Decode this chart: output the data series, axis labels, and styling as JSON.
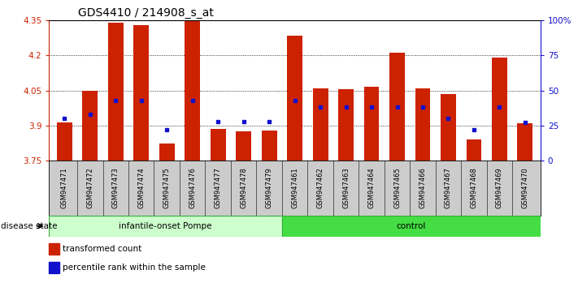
{
  "title": "GDS4410 / 214908_s_at",
  "samples": [
    "GSM947471",
    "GSM947472",
    "GSM947473",
    "GSM947474",
    "GSM947475",
    "GSM947476",
    "GSM947477",
    "GSM947478",
    "GSM947479",
    "GSM947461",
    "GSM947462",
    "GSM947463",
    "GSM947464",
    "GSM947465",
    "GSM947466",
    "GSM947467",
    "GSM947468",
    "GSM947469",
    "GSM947470"
  ],
  "group0_count": 9,
  "group1_count": 10,
  "group0_label": "infantile-onset Pompe",
  "group1_label": "control",
  "group0_color": "#ccffcc",
  "group1_color": "#44dd44",
  "transformed_count": [
    3.915,
    4.05,
    4.34,
    4.33,
    3.825,
    4.355,
    3.885,
    3.875,
    3.88,
    4.285,
    4.06,
    4.055,
    4.065,
    4.21,
    4.06,
    4.035,
    3.84,
    4.19,
    3.91
  ],
  "percentile_rank": [
    30,
    33,
    43,
    43,
    22,
    43,
    28,
    28,
    28,
    43,
    38,
    38,
    38,
    38,
    38,
    30,
    22,
    38,
    27
  ],
  "ylim_left": [
    3.75,
    4.35
  ],
  "ylim_right": [
    0,
    100
  ],
  "bar_color": "#cc2200",
  "dot_color": "#1111cc",
  "yticks_left": [
    3.75,
    3.9,
    4.05,
    4.2,
    4.35
  ],
  "yticks_right": [
    0,
    25,
    50,
    75,
    100
  ],
  "yticklabels_right": [
    "0",
    "25",
    "50",
    "75",
    "100%"
  ],
  "legend_items": [
    {
      "label": "transformed count",
      "color": "#cc2200"
    },
    {
      "label": "percentile rank within the sample",
      "color": "#1111cc"
    }
  ],
  "disease_state_label": "disease state",
  "label_bg": "#cccccc",
  "bar_width": 0.6
}
